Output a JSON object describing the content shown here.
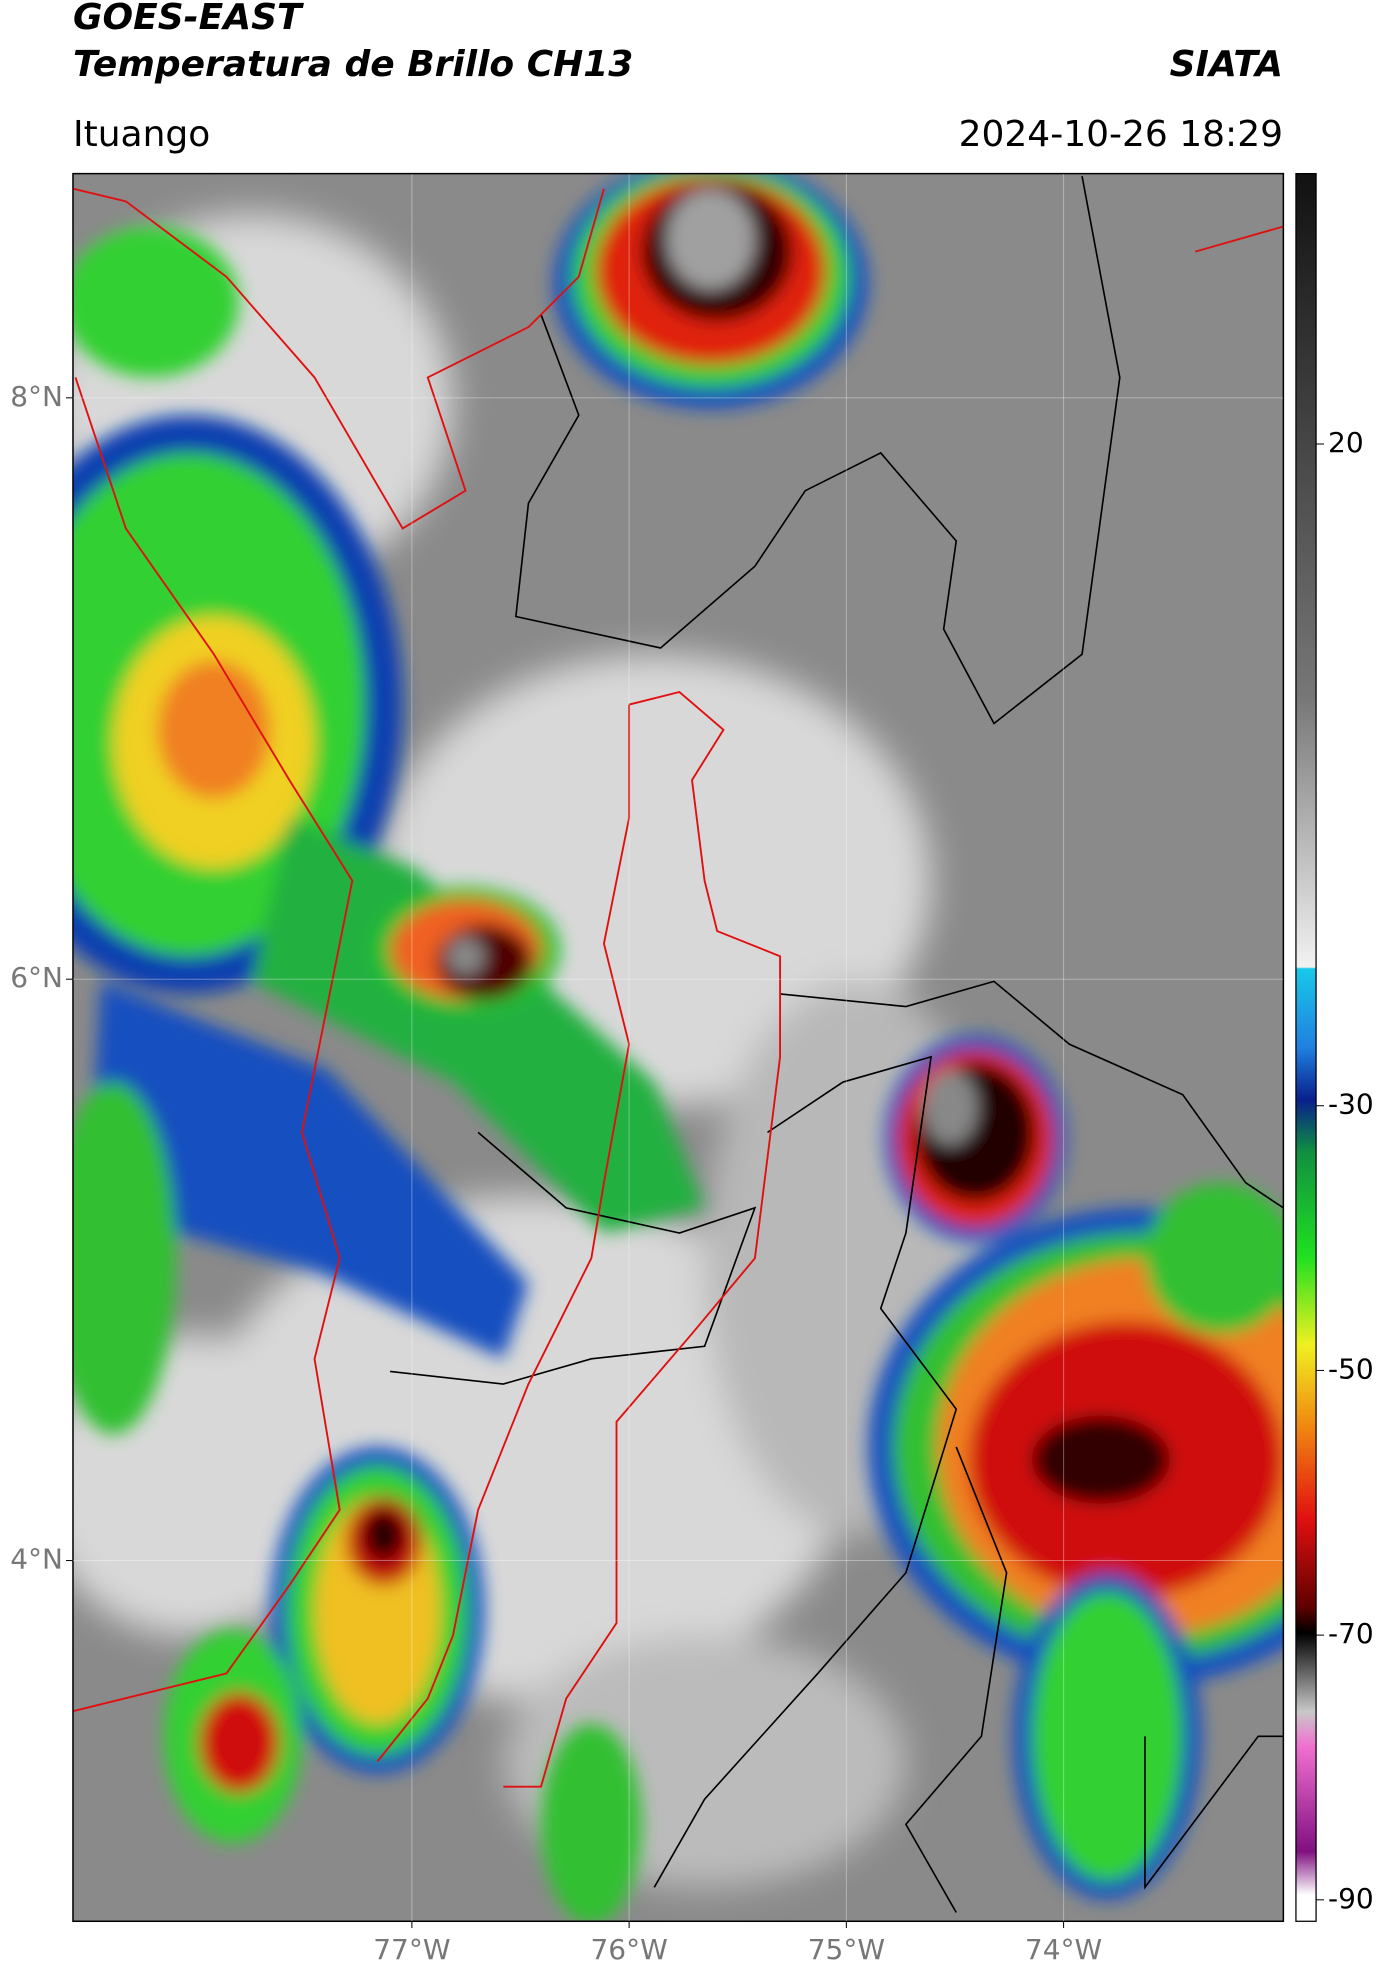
{
  "header": {
    "title": "GOES-EAST",
    "subtitle": "Temperatura de Brillo CH13",
    "source": "SIATA",
    "region": "Ituango",
    "datetime": "2024-10-26 18:29"
  },
  "chart_data": {
    "type": "map",
    "xlim": [
      -78.56,
      -72.99
    ],
    "ylim": [
      2.76,
      8.77
    ],
    "xticks": [
      {
        "value": -77,
        "label": "77°W"
      },
      {
        "value": -76,
        "label": "76°W"
      },
      {
        "value": -75,
        "label": "75°W"
      },
      {
        "value": -74,
        "label": "74°W"
      }
    ],
    "yticks": [
      {
        "value": 4,
        "label": "4°N"
      },
      {
        "value": 6,
        "label": "6°N"
      },
      {
        "value": 8,
        "label": "8°N"
      }
    ],
    "grid": true,
    "colorbar": {
      "lim": [
        -91.6,
        40.4
      ],
      "ticks": [
        20,
        -30,
        -50,
        -70,
        -90
      ]
    }
  }
}
